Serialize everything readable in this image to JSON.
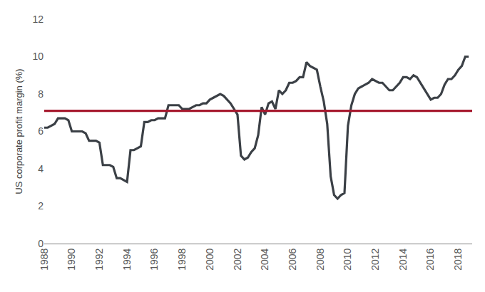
{
  "chart_data": {
    "type": "line",
    "y_label": "US corporate profit margin (%)",
    "xlim": [
      1988,
      2019
    ],
    "xticks": [
      1988,
      1990,
      1992,
      1994,
      1996,
      1998,
      2000,
      2002,
      2004,
      2006,
      2008,
      2010,
      2012,
      2014,
      2016,
      2018
    ],
    "ylim": [
      0,
      12
    ],
    "yticks": [
      0,
      2,
      4,
      6,
      8,
      10,
      12
    ],
    "grid": false,
    "x": [
      1988,
      1988.25,
      1988.5,
      1988.75,
      1989,
      1989.25,
      1989.5,
      1989.75,
      1990,
      1990.25,
      1990.5,
      1990.75,
      1991,
      1991.25,
      1991.5,
      1991.75,
      1992,
      1992.25,
      1992.5,
      1992.75,
      1993,
      1993.25,
      1993.5,
      1993.75,
      1994,
      1994.25,
      1994.5,
      1994.75,
      1995,
      1995.25,
      1995.5,
      1995.75,
      1996,
      1996.25,
      1996.5,
      1996.75,
      1997,
      1997.25,
      1997.5,
      1997.75,
      1998,
      1998.25,
      1998.5,
      1998.75,
      1999,
      1999.25,
      1999.5,
      1999.75,
      2000,
      2000.25,
      2000.5,
      2000.75,
      2001,
      2001.25,
      2001.5,
      2001.75,
      2002,
      2002.25,
      2002.5,
      2002.75,
      2003,
      2003.25,
      2003.5,
      2003.75,
      2004,
      2004.25,
      2004.5,
      2004.75,
      2005,
      2005.25,
      2005.5,
      2005.75,
      2006,
      2006.25,
      2006.5,
      2006.75,
      2007,
      2007.25,
      2007.5,
      2007.75,
      2008,
      2008.25,
      2008.5,
      2008.75,
      2009,
      2009.25,
      2009.5,
      2009.75,
      2010,
      2010.25,
      2010.5,
      2010.75,
      2011,
      2011.25,
      2011.5,
      2011.75,
      2012,
      2012.25,
      2012.5,
      2012.75,
      2013,
      2013.25,
      2013.5,
      2013.75,
      2014,
      2014.25,
      2014.5,
      2014.75,
      2015,
      2015.25,
      2015.5,
      2015.75,
      2016,
      2016.25,
      2016.5,
      2016.75,
      2017,
      2017.25,
      2017.5,
      2017.75,
      2018,
      2018.25,
      2018.5,
      2018.75
    ],
    "series": [
      {
        "color": "#3b4046",
        "line_style": "solid",
        "values": [
          6.2,
          6.2,
          6.3,
          6.4,
          6.7,
          6.7,
          6.7,
          6.6,
          6.0,
          6.0,
          6.0,
          6.0,
          5.9,
          5.5,
          5.5,
          5.5,
          5.4,
          4.2,
          4.2,
          4.2,
          4.1,
          3.5,
          3.5,
          3.4,
          3.3,
          5.0,
          5.0,
          5.1,
          5.2,
          6.5,
          6.5,
          6.6,
          6.6,
          6.7,
          6.7,
          6.7,
          7.4,
          7.4,
          7.4,
          7.4,
          7.2,
          7.2,
          7.2,
          7.3,
          7.4,
          7.4,
          7.5,
          7.5,
          7.7,
          7.8,
          7.9,
          8.0,
          7.9,
          7.7,
          7.5,
          7.2,
          6.9,
          4.7,
          4.5,
          4.6,
          4.9,
          5.1,
          5.8,
          7.3,
          6.9,
          7.5,
          7.6,
          7.2,
          8.2,
          8.0,
          8.2,
          8.6,
          8.6,
          8.7,
          8.9,
          8.9,
          9.7,
          9.5,
          9.4,
          9.3,
          8.4,
          7.6,
          6.4,
          3.6,
          2.6,
          2.4,
          2.6,
          2.7,
          6.3,
          7.4,
          8.0,
          8.3,
          8.4,
          8.5,
          8.6,
          8.8,
          8.7,
          8.6,
          8.6,
          8.4,
          8.2,
          8.2,
          8.4,
          8.6,
          8.9,
          8.9,
          8.8,
          9.0,
          8.9,
          8.6,
          8.3,
          8.0,
          7.7,
          7.8,
          7.8,
          8.0,
          8.5,
          8.8,
          8.8,
          9.0,
          9.3,
          9.5,
          10.0,
          10.0
        ]
      },
      {
        "color": "#a6192e",
        "line_style": "solid",
        "x": [
          1988,
          2019
        ],
        "values": [
          7.1,
          7.1
        ]
      }
    ]
  }
}
